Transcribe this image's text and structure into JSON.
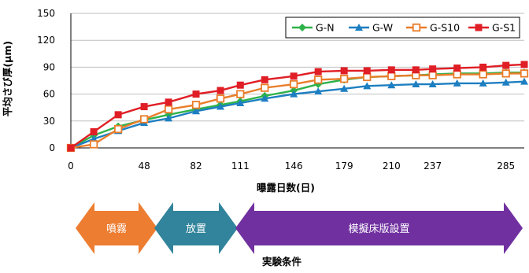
{
  "chart_data": {
    "type": "line",
    "ylabel": "平均さび厚(μm)",
    "xlabel": "曝露日数(日)",
    "ylim": [
      0,
      150
    ],
    "yticks": [
      0,
      30,
      60,
      90,
      120,
      150
    ],
    "xlim": [
      0,
      297
    ],
    "xticks": [
      0,
      48,
      82,
      111,
      146,
      179,
      210,
      237,
      285
    ],
    "grid": "horizontal",
    "legend_position": "top-right",
    "series": [
      {
        "name": "G-N",
        "color": "#2eb24a",
        "marker": "diamond",
        "x": [
          0,
          15,
          31,
          48,
          64,
          82,
          98,
          111,
          127,
          146,
          162,
          179,
          194,
          210,
          226,
          237,
          253,
          270,
          285,
          297
        ],
        "y": [
          0,
          14,
          24,
          31,
          37,
          43,
          48,
          52,
          58,
          64,
          71,
          76,
          79,
          80,
          81,
          82,
          83,
          83,
          84,
          84
        ]
      },
      {
        "name": "G-W",
        "color": "#1d7fc1",
        "marker": "triangle",
        "x": [
          0,
          15,
          31,
          48,
          64,
          82,
          98,
          111,
          127,
          146,
          162,
          179,
          194,
          210,
          226,
          237,
          253,
          270,
          285,
          297
        ],
        "y": [
          0,
          10,
          19,
          28,
          33,
          41,
          46,
          50,
          55,
          60,
          63,
          66,
          69,
          70,
          71,
          71,
          72,
          72,
          73,
          74
        ]
      },
      {
        "name": "G-S10",
        "color": "#ea7d2a",
        "marker": "square-open",
        "x": [
          0,
          15,
          31,
          48,
          64,
          82,
          98,
          111,
          127,
          146,
          162,
          179,
          194,
          210,
          226,
          237,
          253,
          270,
          285,
          297
        ],
        "y": [
          0,
          4,
          21,
          32,
          43,
          48,
          55,
          60,
          67,
          71,
          76,
          77,
          79,
          80,
          81,
          81,
          82,
          82,
          83,
          83
        ]
      },
      {
        "name": "G-S1",
        "color": "#e01e25",
        "marker": "square",
        "x": [
          0,
          15,
          31,
          48,
          64,
          82,
          98,
          111,
          127,
          146,
          162,
          179,
          194,
          210,
          226,
          237,
          253,
          270,
          285,
          297
        ],
        "y": [
          0,
          18,
          37,
          46,
          51,
          60,
          64,
          70,
          76,
          80,
          85,
          86,
          86,
          87,
          87,
          88,
          89,
          90,
          92,
          93
        ]
      }
    ]
  },
  "phases": [
    {
      "label": "噴霧",
      "color": "#ed7d31"
    },
    {
      "label": "放置",
      "color": "#31849b"
    },
    {
      "label": "模擬床版設置",
      "color": "#7030a0"
    }
  ],
  "caption": "実験条件"
}
